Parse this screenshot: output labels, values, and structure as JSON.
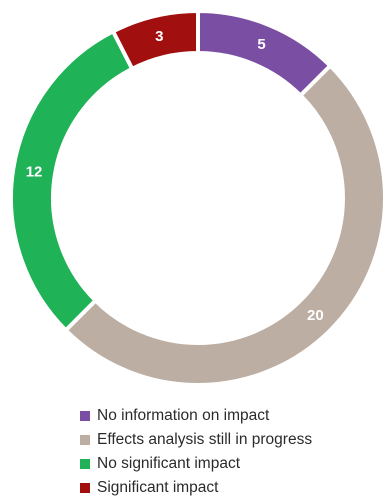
{
  "chart_data": {
    "type": "pie",
    "subtype": "donut",
    "categories": [
      "No information on impact",
      "Effects analysis still in progress",
      "No significant impact",
      "Significant impact"
    ],
    "values": [
      5,
      20,
      12,
      3
    ],
    "colors": [
      "#7a4fa3",
      "#bcaea2",
      "#1fb257",
      "#a20f0f"
    ],
    "label_color": "#ffffff",
    "legend_position": "bottom",
    "start_angle_deg": 0,
    "direction": "clockwise"
  }
}
